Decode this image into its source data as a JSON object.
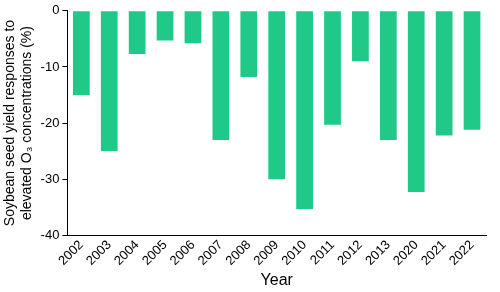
{
  "chart_data": {
    "type": "bar",
    "y_label": [
      "Soybean seed yield responses to",
      "elevated O₃ concentrations (%)"
    ],
    "x_label": "Year",
    "categories": [
      "2002",
      "2003",
      "2004",
      "2005",
      "2006",
      "2007",
      "2008",
      "2009",
      "2010",
      "2011",
      "2012",
      "2013",
      "2020",
      "2021",
      "2022"
    ],
    "values": [
      -15,
      -25,
      -7.7,
      -5.3,
      -5.8,
      -23,
      -11.8,
      -30,
      -35.3,
      -20.3,
      -9,
      -23,
      -32.3,
      -22.2,
      -21.2
    ],
    "color": "#20c987",
    "ylim": [
      -40,
      0
    ],
    "yticks": [
      -40,
      -30,
      -20,
      -10,
      0
    ],
    "grid": false
  }
}
